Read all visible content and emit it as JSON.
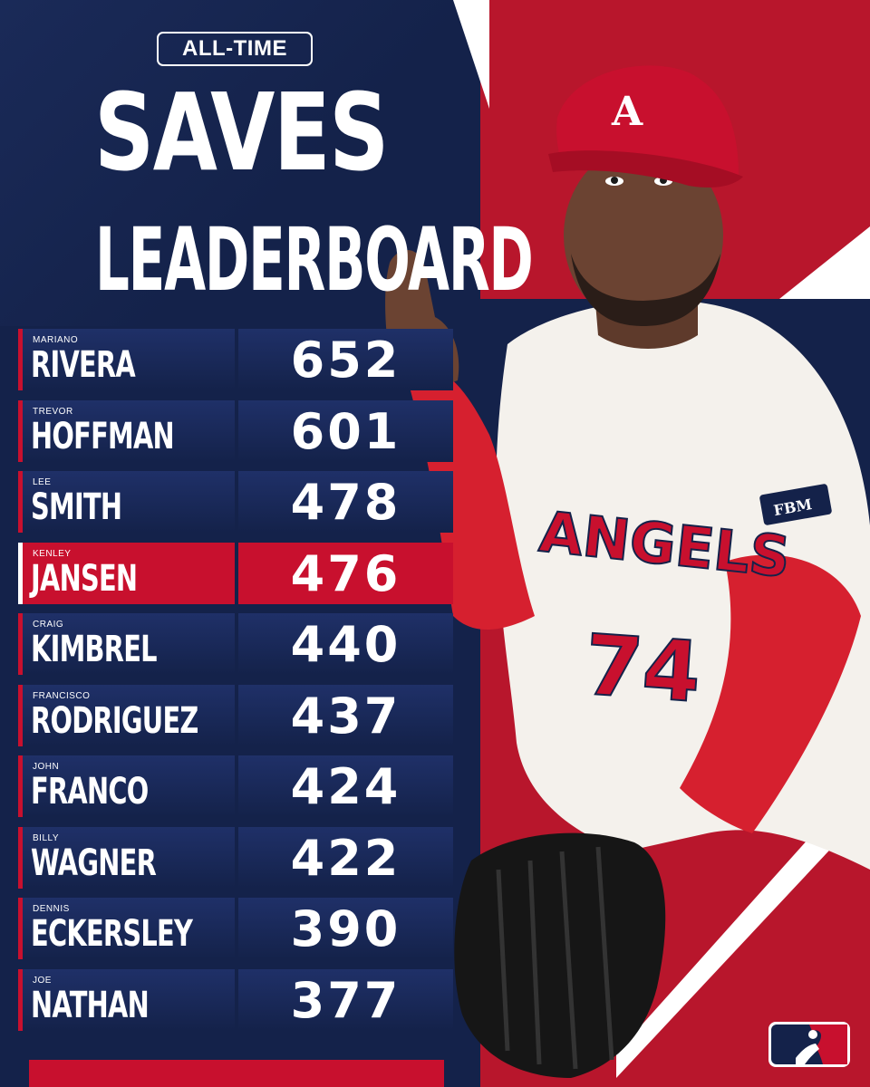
{
  "header": {
    "badge": "ALL-TIME",
    "title_line1": "SAVES",
    "title_line2": "LEADERBOARD"
  },
  "leaderboard": [
    {
      "first": "MARIANO",
      "last": "RIVERA",
      "saves": "652",
      "highlight": false
    },
    {
      "first": "TREVOR",
      "last": "HOFFMAN",
      "saves": "601",
      "highlight": false
    },
    {
      "first": "LEE",
      "last": "SMITH",
      "saves": "478",
      "highlight": false
    },
    {
      "first": "KENLEY",
      "last": "JANSEN",
      "saves": "476",
      "highlight": true
    },
    {
      "first": "CRAIG",
      "last": "KIMBREL",
      "saves": "440",
      "highlight": false
    },
    {
      "first": "FRANCISCO",
      "last": "RODRIGUEZ",
      "saves": "437",
      "highlight": false
    },
    {
      "first": "JOHN",
      "last": "FRANCO",
      "saves": "424",
      "highlight": false
    },
    {
      "first": "BILLY",
      "last": "WAGNER",
      "saves": "422",
      "highlight": false
    },
    {
      "first": "DENNIS",
      "last": "ECKERSLEY",
      "saves": "390",
      "highlight": false
    },
    {
      "first": "JOE",
      "last": "NATHAN",
      "saves": "377",
      "highlight": false
    }
  ],
  "player": {
    "jersey_text": "ANGELS",
    "number": "74",
    "patch": "FBM",
    "cap_letter": "A"
  },
  "colors": {
    "navy": "#14224a",
    "red": "#c8102e",
    "white": "#ffffff"
  },
  "icons": {
    "league_logo": "mlb-logo-icon"
  }
}
